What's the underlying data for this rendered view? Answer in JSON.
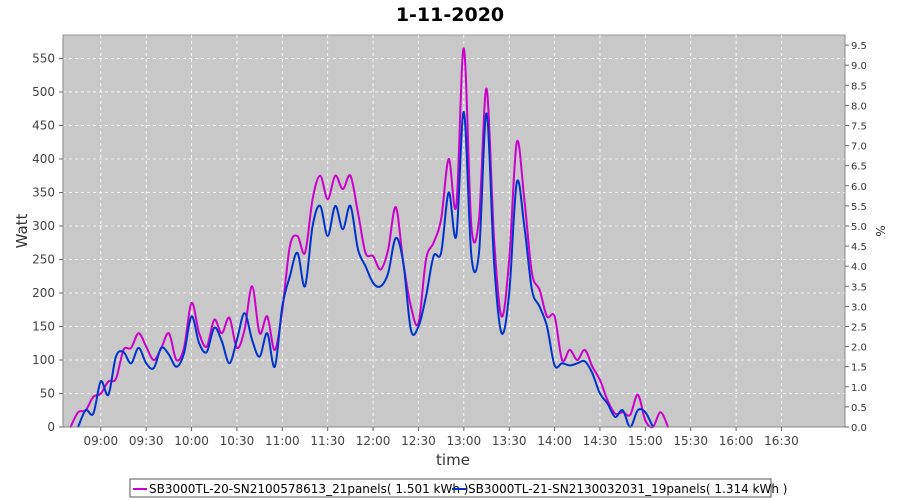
{
  "chart_data": {
    "type": "line",
    "title": "1-11-2020",
    "xlabel": "time",
    "ylabel": "Watt",
    "y2label": "%",
    "x_ticks": [
      "09:00",
      "09:30",
      "10:00",
      "10:30",
      "11:00",
      "11:30",
      "12:00",
      "12:30",
      "13:00",
      "13:30",
      "14:00",
      "14:30",
      "15:00",
      "15:30",
      "16:00",
      "16:30"
    ],
    "xlim_minutes_of_day": [
      515,
      1032
    ],
    "ylim": [
      0,
      585
    ],
    "y_ticks": [
      0,
      50,
      100,
      150,
      200,
      250,
      300,
      350,
      400,
      450,
      500,
      550
    ],
    "y2lim": [
      0,
      9.75
    ],
    "y2_ticks": [
      "0.0",
      "0.5",
      "1.0",
      "1.5",
      "2.0",
      "2.5",
      "3.0",
      "3.5",
      "4.0",
      "4.5",
      "5.0",
      "5.5",
      "6.0",
      "6.5",
      "7.0",
      "7.5",
      "8.0",
      "8.5",
      "9.0",
      "9.5"
    ],
    "grid": true,
    "legend_position": "bottom",
    "series": [
      {
        "name": "SB3000TL-20-SN2100578613_21panels( 1.501 kWh )",
        "color": "#cc00cc",
        "points": [
          [
            "08:40",
            0
          ],
          [
            "08:45",
            22
          ],
          [
            "08:50",
            25
          ],
          [
            "08:55",
            45
          ],
          [
            "09:00",
            50
          ],
          [
            "09:05",
            68
          ],
          [
            "09:10",
            72
          ],
          [
            "09:15",
            115
          ],
          [
            "09:20",
            118
          ],
          [
            "09:25",
            140
          ],
          [
            "09:30",
            120
          ],
          [
            "09:35",
            100
          ],
          [
            "09:40",
            118
          ],
          [
            "09:45",
            140
          ],
          [
            "09:50",
            100
          ],
          [
            "09:55",
            118
          ],
          [
            "10:00",
            185
          ],
          [
            "10:05",
            140
          ],
          [
            "10:10",
            120
          ],
          [
            "10:15",
            160
          ],
          [
            "10:20",
            140
          ],
          [
            "10:25",
            163
          ],
          [
            "10:30",
            118
          ],
          [
            "10:35",
            145
          ],
          [
            "10:40",
            210
          ],
          [
            "10:45",
            140
          ],
          [
            "10:50",
            165
          ],
          [
            "10:55",
            115
          ],
          [
            "11:00",
            175
          ],
          [
            "11:05",
            270
          ],
          [
            "11:10",
            285
          ],
          [
            "11:15",
            260
          ],
          [
            "11:20",
            340
          ],
          [
            "11:25",
            375
          ],
          [
            "11:30",
            340
          ],
          [
            "11:35",
            375
          ],
          [
            "11:40",
            355
          ],
          [
            "11:45",
            375
          ],
          [
            "11:50",
            320
          ],
          [
            "11:55",
            260
          ],
          [
            "12:00",
            255
          ],
          [
            "12:05",
            235
          ],
          [
            "12:10",
            265
          ],
          [
            "12:15",
            328
          ],
          [
            "12:20",
            245
          ],
          [
            "12:25",
            180
          ],
          [
            "12:30",
            155
          ],
          [
            "12:35",
            250
          ],
          [
            "12:40",
            275
          ],
          [
            "12:45",
            310
          ],
          [
            "12:50",
            400
          ],
          [
            "12:55",
            330
          ],
          [
            "13:00",
            565
          ],
          [
            "13:05",
            300
          ],
          [
            "13:10",
            310
          ],
          [
            "13:15",
            505
          ],
          [
            "13:20",
            280
          ],
          [
            "13:25",
            165
          ],
          [
            "13:30",
            250
          ],
          [
            "13:35",
            425
          ],
          [
            "13:40",
            340
          ],
          [
            "13:45",
            230
          ],
          [
            "13:50",
            205
          ],
          [
            "13:55",
            165
          ],
          [
            "14:00",
            165
          ],
          [
            "14:05",
            100
          ],
          [
            "14:10",
            115
          ],
          [
            "14:15",
            100
          ],
          [
            "14:20",
            115
          ],
          [
            "14:25",
            90
          ],
          [
            "14:30",
            70
          ],
          [
            "14:35",
            40
          ],
          [
            "14:40",
            20
          ],
          [
            "14:45",
            22
          ],
          [
            "14:50",
            18
          ],
          [
            "14:55",
            48
          ],
          [
            "15:00",
            10
          ],
          [
            "15:05",
            0
          ],
          [
            "15:10",
            22
          ],
          [
            "15:15",
            0
          ]
        ]
      },
      {
        "name": "SB3000TL-21-SN2130032031_19panels( 1.314 kWh )",
        "color": "#0033cc",
        "points": [
          [
            "08:45",
            0
          ],
          [
            "08:50",
            25
          ],
          [
            "08:55",
            20
          ],
          [
            "09:00",
            68
          ],
          [
            "09:05",
            48
          ],
          [
            "09:10",
            105
          ],
          [
            "09:15",
            112
          ],
          [
            "09:20",
            95
          ],
          [
            "09:25",
            118
          ],
          [
            "09:30",
            95
          ],
          [
            "09:35",
            88
          ],
          [
            "09:40",
            118
          ],
          [
            "09:45",
            108
          ],
          [
            "09:50",
            90
          ],
          [
            "09:55",
            110
          ],
          [
            "10:00",
            165
          ],
          [
            "10:05",
            125
          ],
          [
            "10:10",
            112
          ],
          [
            "10:15",
            148
          ],
          [
            "10:20",
            128
          ],
          [
            "10:25",
            95
          ],
          [
            "10:30",
            130
          ],
          [
            "10:35",
            170
          ],
          [
            "10:40",
            130
          ],
          [
            "10:45",
            105
          ],
          [
            "10:50",
            140
          ],
          [
            "10:55",
            90
          ],
          [
            "11:00",
            180
          ],
          [
            "11:05",
            225
          ],
          [
            "11:10",
            260
          ],
          [
            "11:15",
            210
          ],
          [
            "11:20",
            300
          ],
          [
            "11:25",
            330
          ],
          [
            "11:30",
            285
          ],
          [
            "11:35",
            330
          ],
          [
            "11:40",
            295
          ],
          [
            "11:45",
            330
          ],
          [
            "11:50",
            265
          ],
          [
            "11:55",
            240
          ],
          [
            "12:00",
            215
          ],
          [
            "12:05",
            210
          ],
          [
            "12:10",
            230
          ],
          [
            "12:15",
            282
          ],
          [
            "12:20",
            245
          ],
          [
            "12:25",
            145
          ],
          [
            "12:30",
            150
          ],
          [
            "12:35",
            195
          ],
          [
            "12:40",
            255
          ],
          [
            "12:45",
            260
          ],
          [
            "12:50",
            350
          ],
          [
            "12:55",
            285
          ],
          [
            "13:00",
            470
          ],
          [
            "13:05",
            255
          ],
          [
            "13:10",
            260
          ],
          [
            "13:15",
            468
          ],
          [
            "13:20",
            245
          ],
          [
            "13:25",
            140
          ],
          [
            "13:30",
            200
          ],
          [
            "13:35",
            365
          ],
          [
            "13:40",
            300
          ],
          [
            "13:45",
            205
          ],
          [
            "13:50",
            180
          ],
          [
            "13:55",
            150
          ],
          [
            "14:00",
            92
          ],
          [
            "14:05",
            95
          ],
          [
            "14:10",
            92
          ],
          [
            "14:15",
            95
          ],
          [
            "14:20",
            98
          ],
          [
            "14:25",
            80
          ],
          [
            "14:30",
            50
          ],
          [
            "14:35",
            35
          ],
          [
            "14:40",
            15
          ],
          [
            "14:45",
            25
          ],
          [
            "14:50",
            0
          ],
          [
            "14:55",
            25
          ],
          [
            "15:00",
            22
          ],
          [
            "15:05",
            0
          ]
        ]
      }
    ]
  }
}
